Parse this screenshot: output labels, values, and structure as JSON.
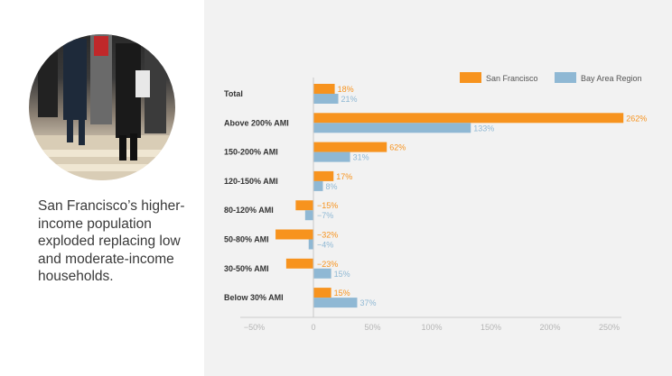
{
  "caption": "San Francisco’s higher-income population exploded replacing low and moderate-income households.",
  "photo": {
    "icon": "pedestrians-crossing-photo"
  },
  "colors": {
    "sf": "#f7931e",
    "bay": "#8fb8d4",
    "panel": "#f2f2f2",
    "axis": "#bbbbbb"
  },
  "chart_data": {
    "type": "bar",
    "orientation": "horizontal",
    "categories": [
      "Total",
      "Above 200% AMI",
      "150-200% AMI",
      "120-150% AMI",
      "80-120% AMI",
      "50-80% AMI",
      "30-50% AMI",
      "Below 30% AMI"
    ],
    "series": [
      {
        "name": "San Francisco",
        "values": [
          18,
          262,
          62,
          17,
          -15,
          -32,
          -23,
          15
        ],
        "labels": [
          "18%",
          "262%",
          "62%",
          "17%",
          "−15%",
          "−32%",
          "−23%",
          "15%"
        ]
      },
      {
        "name": "Bay Area Region",
        "values": [
          21,
          133,
          31,
          8,
          -7,
          -4,
          15,
          37
        ],
        "labels": [
          "21%",
          "133%",
          "31%",
          "8%",
          "−7%",
          "−4%",
          "15%",
          "37%"
        ]
      }
    ],
    "xlim": [
      -50,
      260
    ],
    "xticks": [
      -50,
      0,
      50,
      100,
      150,
      200,
      250
    ],
    "xtick_labels": [
      "−50%",
      "0",
      "50%",
      "100%",
      "150%",
      "200%",
      "250%"
    ],
    "legend_position": "top-right",
    "grid": false
  }
}
